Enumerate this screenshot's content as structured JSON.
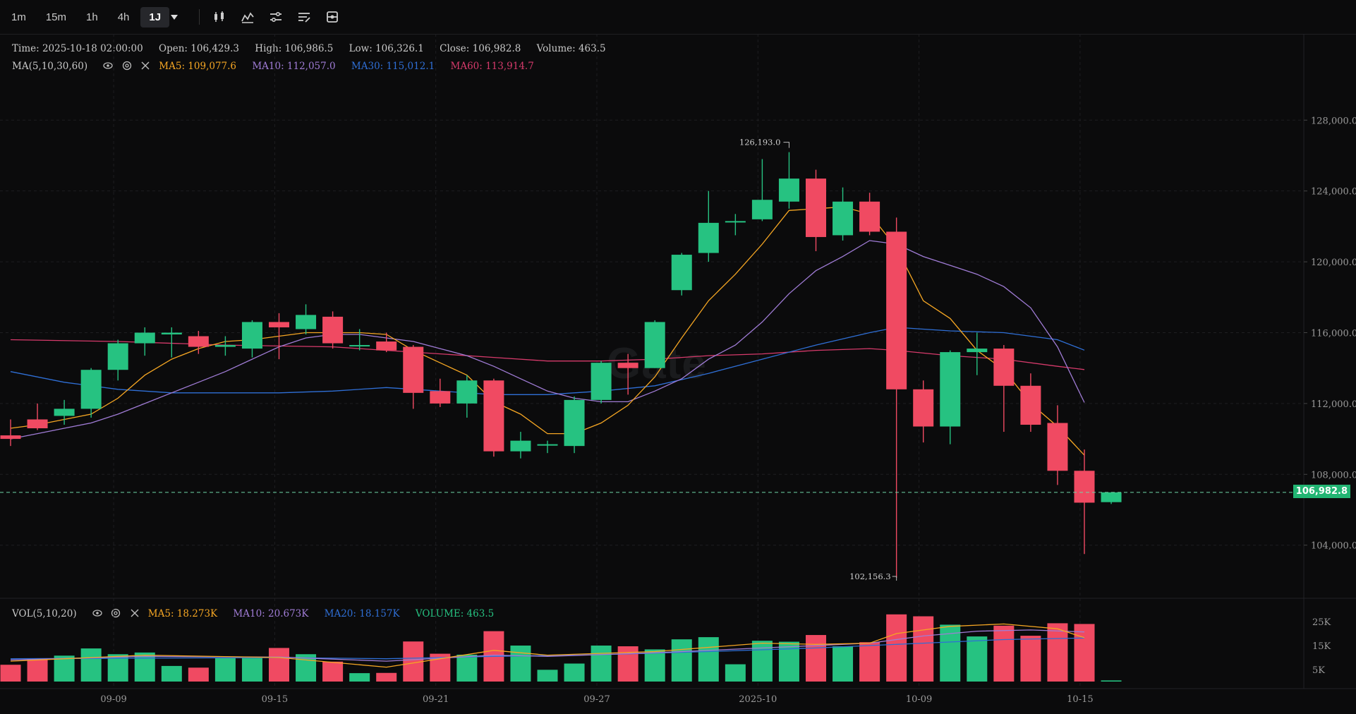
{
  "toolbar": {
    "timeframes": [
      "1m",
      "15m",
      "1h",
      "4h",
      "1J"
    ],
    "active_timeframe": "1J",
    "tools": [
      "candles-icon",
      "indicators-icon",
      "settings-sliders-icon",
      "list-edit-icon",
      "layout-icon"
    ]
  },
  "watermark": "Gate",
  "ohlc": {
    "time_label": "Time:",
    "time": "2025-10-18 02:00:00",
    "open_label": "Open:",
    "open": "106,429.3",
    "high_label": "High:",
    "high": "106,986.5",
    "low_label": "Low:",
    "low": "106,326.1",
    "close_label": "Close:",
    "close": "106,982.8",
    "volume_label": "Volume:",
    "volume": "463.5"
  },
  "ma_legend": {
    "title": "MA(5,10,30,60)",
    "items": [
      {
        "label": "MA5: 109,077.6",
        "color": "#f5a623"
      },
      {
        "label": "MA10: 112,057.0",
        "color": "#a07cd6"
      },
      {
        "label": "MA30: 115,012.1",
        "color": "#2f6fd6"
      },
      {
        "label": "MA60: 113,914.7",
        "color": "#d63a6b"
      }
    ]
  },
  "vol_legend": {
    "title": "VOL(5,10,20)",
    "items": [
      {
        "label": "MA5: 18.273K",
        "color": "#f5a623"
      },
      {
        "label": "MA10: 20.673K",
        "color": "#a07cd6"
      },
      {
        "label": "MA20: 18.157K",
        "color": "#2f6fd6"
      },
      {
        "label": "VOLUME: 463.5",
        "color": "#26c281"
      }
    ]
  },
  "colors": {
    "up": "#26c281",
    "down": "#f04a62",
    "grid": "#1e1e21",
    "axis_text": "#9a9a9a"
  },
  "current_price_label": "106,982.8",
  "chart_data": {
    "type": "candlestick",
    "y_ticks": [
      "128,000.0",
      "124,000.0",
      "120,000.0",
      "116,000.0",
      "112,000.0",
      "108,000.0",
      "104,000.0"
    ],
    "y_tick_values": [
      128000,
      124000,
      120000,
      116000,
      112000,
      108000,
      104000
    ],
    "ylim": [
      101000,
      130800
    ],
    "x_ticks": [
      "09-09",
      "09-15",
      "09-21",
      "09-27",
      "2025-10",
      "10-09",
      "10-15"
    ],
    "x_tick_index": [
      2,
      8,
      14,
      20,
      26,
      32,
      38
    ],
    "vol_ticks": [
      "25K",
      "15K",
      "5K"
    ],
    "vol_tick_values": [
      25000,
      15000,
      5000
    ],
    "vol_lim": [
      0,
      30000
    ],
    "high_annotation": "126,193.0",
    "low_annotation": "102,156.3",
    "candles": [
      [
        110200,
        111100,
        109600,
        110000,
        7000
      ],
      [
        111100,
        112000,
        110500,
        110600,
        9500
      ],
      [
        111300,
        112200,
        110800,
        111700,
        10800
      ],
      [
        111700,
        114000,
        111200,
        113900,
        13800
      ],
      [
        113900,
        115600,
        113300,
        115400,
        11400
      ],
      [
        115400,
        116300,
        114700,
        116000,
        12100
      ],
      [
        115900,
        116300,
        114600,
        116000,
        6500
      ],
      [
        115800,
        116100,
        114800,
        115200,
        5800
      ],
      [
        115200,
        115800,
        114700,
        115300,
        9900
      ],
      [
        115100,
        116700,
        114600,
        116600,
        9800
      ],
      [
        116600,
        117100,
        114500,
        116300,
        14000
      ],
      [
        116200,
        117600,
        115900,
        117000,
        11400
      ],
      [
        116900,
        117200,
        115100,
        115400,
        8300
      ],
      [
        115300,
        116200,
        115000,
        115300,
        3500
      ],
      [
        115500,
        116000,
        114900,
        115000,
        3600
      ],
      [
        115200,
        115300,
        111700,
        112600,
        16700
      ],
      [
        112700,
        113400,
        111800,
        112000,
        11600
      ],
      [
        112000,
        113600,
        111200,
        113300,
        11200
      ],
      [
        113300,
        113400,
        109000,
        109300,
        21000
      ],
      [
        109300,
        110400,
        108900,
        109900,
        15000
      ],
      [
        109700,
        109900,
        109200,
        109700,
        4900
      ],
      [
        109600,
        112400,
        109200,
        112200,
        7500
      ],
      [
        112200,
        114400,
        112000,
        114300,
        15000
      ],
      [
        114300,
        114800,
        112500,
        114000,
        14700
      ],
      [
        114000,
        116700,
        114000,
        116600,
        13400
      ],
      [
        118400,
        120500,
        118100,
        120400,
        17600
      ],
      [
        120500,
        124000,
        120000,
        122200,
        18500
      ],
      [
        122300,
        122700,
        121500,
        122300,
        7200
      ],
      [
        122400,
        125800,
        122300,
        123500,
        17000
      ],
      [
        123400,
        126193,
        123000,
        124700,
        16600
      ],
      [
        124700,
        125200,
        120600,
        121400,
        19400
      ],
      [
        121500,
        124200,
        121200,
        123400,
        14700
      ],
      [
        123400,
        123900,
        121500,
        121700,
        16400
      ],
      [
        121700,
        122500,
        102156,
        112800,
        28000
      ],
      [
        112800,
        113300,
        109800,
        110700,
        27200
      ],
      [
        110700,
        115000,
        109700,
        114900,
        23700
      ],
      [
        114900,
        116000,
        113600,
        115100,
        18800
      ],
      [
        115100,
        115300,
        110400,
        113000,
        23300
      ],
      [
        113000,
        113700,
        110400,
        110800,
        19100
      ],
      [
        110900,
        111900,
        107400,
        108200,
        24300
      ],
      [
        108200,
        109400,
        103500,
        106400,
        24000
      ],
      [
        106429.3,
        106986.5,
        106326.1,
        106982.8,
        463.5
      ]
    ],
    "ma5": [
      [
        0,
        110600
      ],
      [
        1,
        110800
      ],
      [
        2,
        111100
      ],
      [
        3,
        111400
      ],
      [
        4,
        112300
      ],
      [
        5,
        113600
      ],
      [
        6,
        114500
      ],
      [
        7,
        115100
      ],
      [
        8,
        115500
      ],
      [
        9,
        115600
      ],
      [
        10,
        115800
      ],
      [
        11,
        116000
      ],
      [
        12,
        116000
      ],
      [
        13,
        116000
      ],
      [
        14,
        115900
      ],
      [
        15,
        115000
      ],
      [
        16,
        114300
      ],
      [
        17,
        113600
      ],
      [
        18,
        112100
      ],
      [
        19,
        111400
      ],
      [
        20,
        110300
      ],
      [
        21,
        110300
      ],
      [
        22,
        110900
      ],
      [
        23,
        111900
      ],
      [
        24,
        113500
      ],
      [
        25,
        115700
      ],
      [
        26,
        117800
      ],
      [
        27,
        119300
      ],
      [
        28,
        121000
      ],
      [
        29,
        122900
      ],
      [
        30,
        123000
      ],
      [
        31,
        123100
      ],
      [
        32,
        122700
      ],
      [
        33,
        120800
      ],
      [
        34,
        117800
      ],
      [
        35,
        116800
      ],
      [
        36,
        115000
      ],
      [
        37,
        113900
      ],
      [
        38,
        112000
      ],
      [
        39,
        110700
      ],
      [
        40,
        109077.6
      ]
    ],
    "ma10": [
      [
        0,
        110000
      ],
      [
        1,
        110300
      ],
      [
        2,
        110600
      ],
      [
        3,
        110900
      ],
      [
        4,
        111400
      ],
      [
        5,
        112000
      ],
      [
        6,
        112600
      ],
      [
        7,
        113200
      ],
      [
        8,
        113800
      ],
      [
        9,
        114500
      ],
      [
        10,
        115200
      ],
      [
        11,
        115700
      ],
      [
        12,
        115900
      ],
      [
        13,
        115900
      ],
      [
        14,
        115700
      ],
      [
        15,
        115500
      ],
      [
        16,
        115100
      ],
      [
        17,
        114700
      ],
      [
        18,
        114100
      ],
      [
        19,
        113400
      ],
      [
        20,
        112700
      ],
      [
        21,
        112300
      ],
      [
        22,
        112100
      ],
      [
        23,
        112100
      ],
      [
        24,
        112700
      ],
      [
        25,
        113400
      ],
      [
        26,
        114500
      ],
      [
        27,
        115300
      ],
      [
        28,
        116600
      ],
      [
        29,
        118200
      ],
      [
        30,
        119500
      ],
      [
        31,
        120300
      ],
      [
        32,
        121200
      ],
      [
        33,
        121000
      ],
      [
        34,
        120300
      ],
      [
        35,
        119800
      ],
      [
        36,
        119300
      ],
      [
        37,
        118600
      ],
      [
        38,
        117400
      ],
      [
        39,
        115200
      ],
      [
        40,
        112057
      ]
    ],
    "ma30": [
      [
        0,
        113800
      ],
      [
        2,
        113200
      ],
      [
        4,
        112800
      ],
      [
        6,
        112600
      ],
      [
        8,
        112600
      ],
      [
        10,
        112600
      ],
      [
        12,
        112700
      ],
      [
        14,
        112900
      ],
      [
        16,
        112700
      ],
      [
        18,
        112500
      ],
      [
        20,
        112500
      ],
      [
        22,
        112700
      ],
      [
        24,
        113000
      ],
      [
        26,
        113700
      ],
      [
        28,
        114500
      ],
      [
        30,
        115300
      ],
      [
        32,
        116000
      ],
      [
        33,
        116300
      ],
      [
        35,
        116100
      ],
      [
        37,
        116000
      ],
      [
        39,
        115600
      ],
      [
        40,
        115012.1
      ]
    ],
    "ma60": [
      [
        0,
        115600
      ],
      [
        4,
        115500
      ],
      [
        8,
        115300
      ],
      [
        12,
        115200
      ],
      [
        14,
        115000
      ],
      [
        18,
        114600
      ],
      [
        20,
        114400
      ],
      [
        22,
        114400
      ],
      [
        24,
        114500
      ],
      [
        26,
        114700
      ],
      [
        28,
        114800
      ],
      [
        30,
        115000
      ],
      [
        32,
        115100
      ],
      [
        33,
        115000
      ],
      [
        35,
        114700
      ],
      [
        37,
        114500
      ],
      [
        39,
        114100
      ],
      [
        40,
        113914.7
      ]
    ],
    "vol_ma5": [
      [
        0,
        8500
      ],
      [
        5,
        11000
      ],
      [
        10,
        10000
      ],
      [
        14,
        6000
      ],
      [
        18,
        13000
      ],
      [
        20,
        11000
      ],
      [
        24,
        12500
      ],
      [
        28,
        16000
      ],
      [
        30,
        15500
      ],
      [
        32,
        16000
      ],
      [
        33,
        20000
      ],
      [
        35,
        23000
      ],
      [
        37,
        24000
      ],
      [
        39,
        22000
      ],
      [
        40,
        18273
      ]
    ],
    "vol_ma10": [
      [
        0,
        9000
      ],
      [
        5,
        10500
      ],
      [
        10,
        10200
      ],
      [
        14,
        8500
      ],
      [
        18,
        11000
      ],
      [
        20,
        10500
      ],
      [
        24,
        12000
      ],
      [
        28,
        14000
      ],
      [
        30,
        15000
      ],
      [
        32,
        16000
      ],
      [
        34,
        19000
      ],
      [
        36,
        21000
      ],
      [
        38,
        21500
      ],
      [
        40,
        20673
      ]
    ],
    "vol_ma20": [
      [
        0,
        9500
      ],
      [
        10,
        10000
      ],
      [
        14,
        9500
      ],
      [
        18,
        10500
      ],
      [
        22,
        11200
      ],
      [
        26,
        12500
      ],
      [
        30,
        14000
      ],
      [
        34,
        16000
      ],
      [
        37,
        17500
      ],
      [
        40,
        18157
      ]
    ]
  }
}
